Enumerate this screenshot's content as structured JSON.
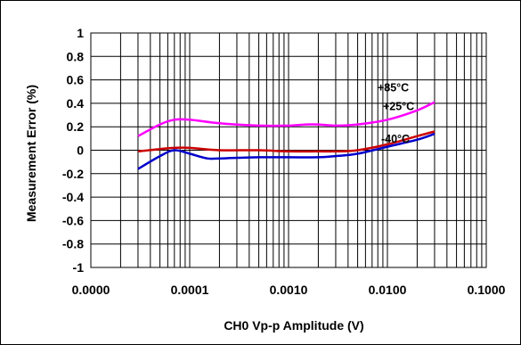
{
  "chart_data": {
    "type": "line",
    "title": "",
    "xlabel": "CH0 Vp-p Amplitude (V)",
    "ylabel": "Measurement Error (%)",
    "x_scale": "log",
    "xlim": [
      1e-05,
      0.1
    ],
    "ylim": [
      -1,
      1
    ],
    "x_tick_labels": [
      "0.0000",
      "0.0001",
      "0.0010",
      "0.0100",
      "0.1000"
    ],
    "y_tick_labels": [
      "1",
      "0.8",
      "0.6",
      "0.4",
      "0.2",
      "0",
      "-0.2",
      "-0.4",
      "-0.6",
      "-0.8",
      "-1"
    ],
    "grid": true,
    "series": [
      {
        "name": "+85°C",
        "color": "#ff00ff",
        "x": [
          3e-05,
          5e-05,
          7e-05,
          0.0001,
          0.0002,
          0.0005,
          0.001,
          0.0015,
          0.002,
          0.003,
          0.005,
          0.01,
          0.02,
          0.03
        ],
        "y": [
          0.12,
          0.22,
          0.26,
          0.26,
          0.23,
          0.21,
          0.21,
          0.22,
          0.22,
          0.21,
          0.22,
          0.26,
          0.34,
          0.41
        ]
      },
      {
        "name": "+25°C",
        "color": "#cc0000",
        "x": [
          3e-05,
          5e-05,
          7e-05,
          0.0001,
          0.0002,
          0.0005,
          0.001,
          0.002,
          0.003,
          0.005,
          0.01,
          0.02,
          0.03
        ],
        "y": [
          -0.01,
          0.01,
          0.02,
          0.02,
          0.0,
          0.0,
          -0.01,
          -0.01,
          -0.01,
          0.0,
          0.05,
          0.12,
          0.16
        ]
      },
      {
        "name": "-40°C",
        "color": "#0000cc",
        "x": [
          3e-05,
          5e-05,
          7e-05,
          0.0001,
          0.00015,
          0.0002,
          0.0005,
          0.001,
          0.002,
          0.003,
          0.005,
          0.01,
          0.02,
          0.03
        ],
        "y": [
          -0.16,
          -0.05,
          0.0,
          -0.03,
          -0.07,
          -0.07,
          -0.06,
          -0.06,
          -0.06,
          -0.05,
          -0.03,
          0.03,
          0.09,
          0.14
        ]
      }
    ]
  }
}
